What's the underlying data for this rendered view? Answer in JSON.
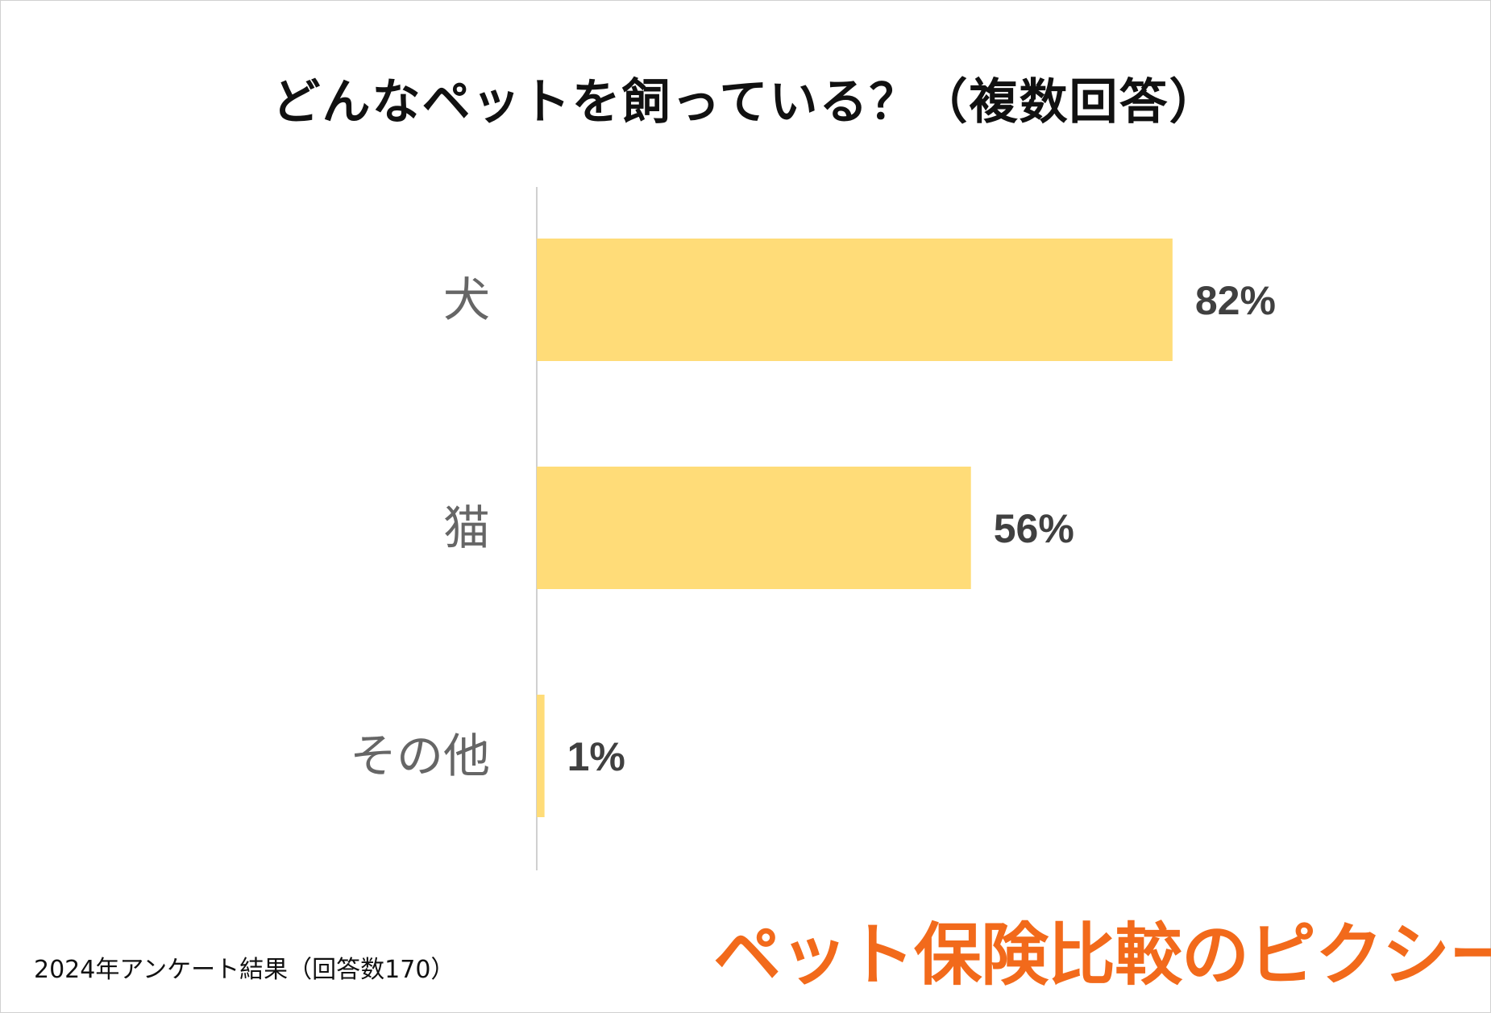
{
  "chart_data": {
    "type": "bar",
    "orientation": "horizontal",
    "title": "どんなペットを飼っている？（複数回答）",
    "categories": [
      "犬",
      "猫",
      "その他"
    ],
    "values": [
      82,
      56,
      1
    ],
    "value_labels": [
      "82%",
      "56%",
      "1%"
    ],
    "xlim": [
      0,
      100
    ],
    "grid": false,
    "legend": "none",
    "bar_color": "#FFDC78"
  },
  "footer": {
    "source_note": "2024年アンケート結果（回答数170）"
  },
  "logo": {
    "text": "ペット保険比較のピクシー",
    "color": "#F26A1B"
  }
}
